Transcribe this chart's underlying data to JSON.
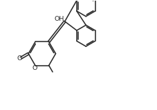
{
  "bg_color": "#ffffff",
  "line_color": "#2a2a2a",
  "line_width": 1.15,
  "font_size": 6.8,
  "figsize": [
    2.28,
    1.59
  ],
  "dpi": 100,
  "xlim": [
    -0.5,
    10.5
  ],
  "ylim": [
    -0.5,
    7.5
  ]
}
